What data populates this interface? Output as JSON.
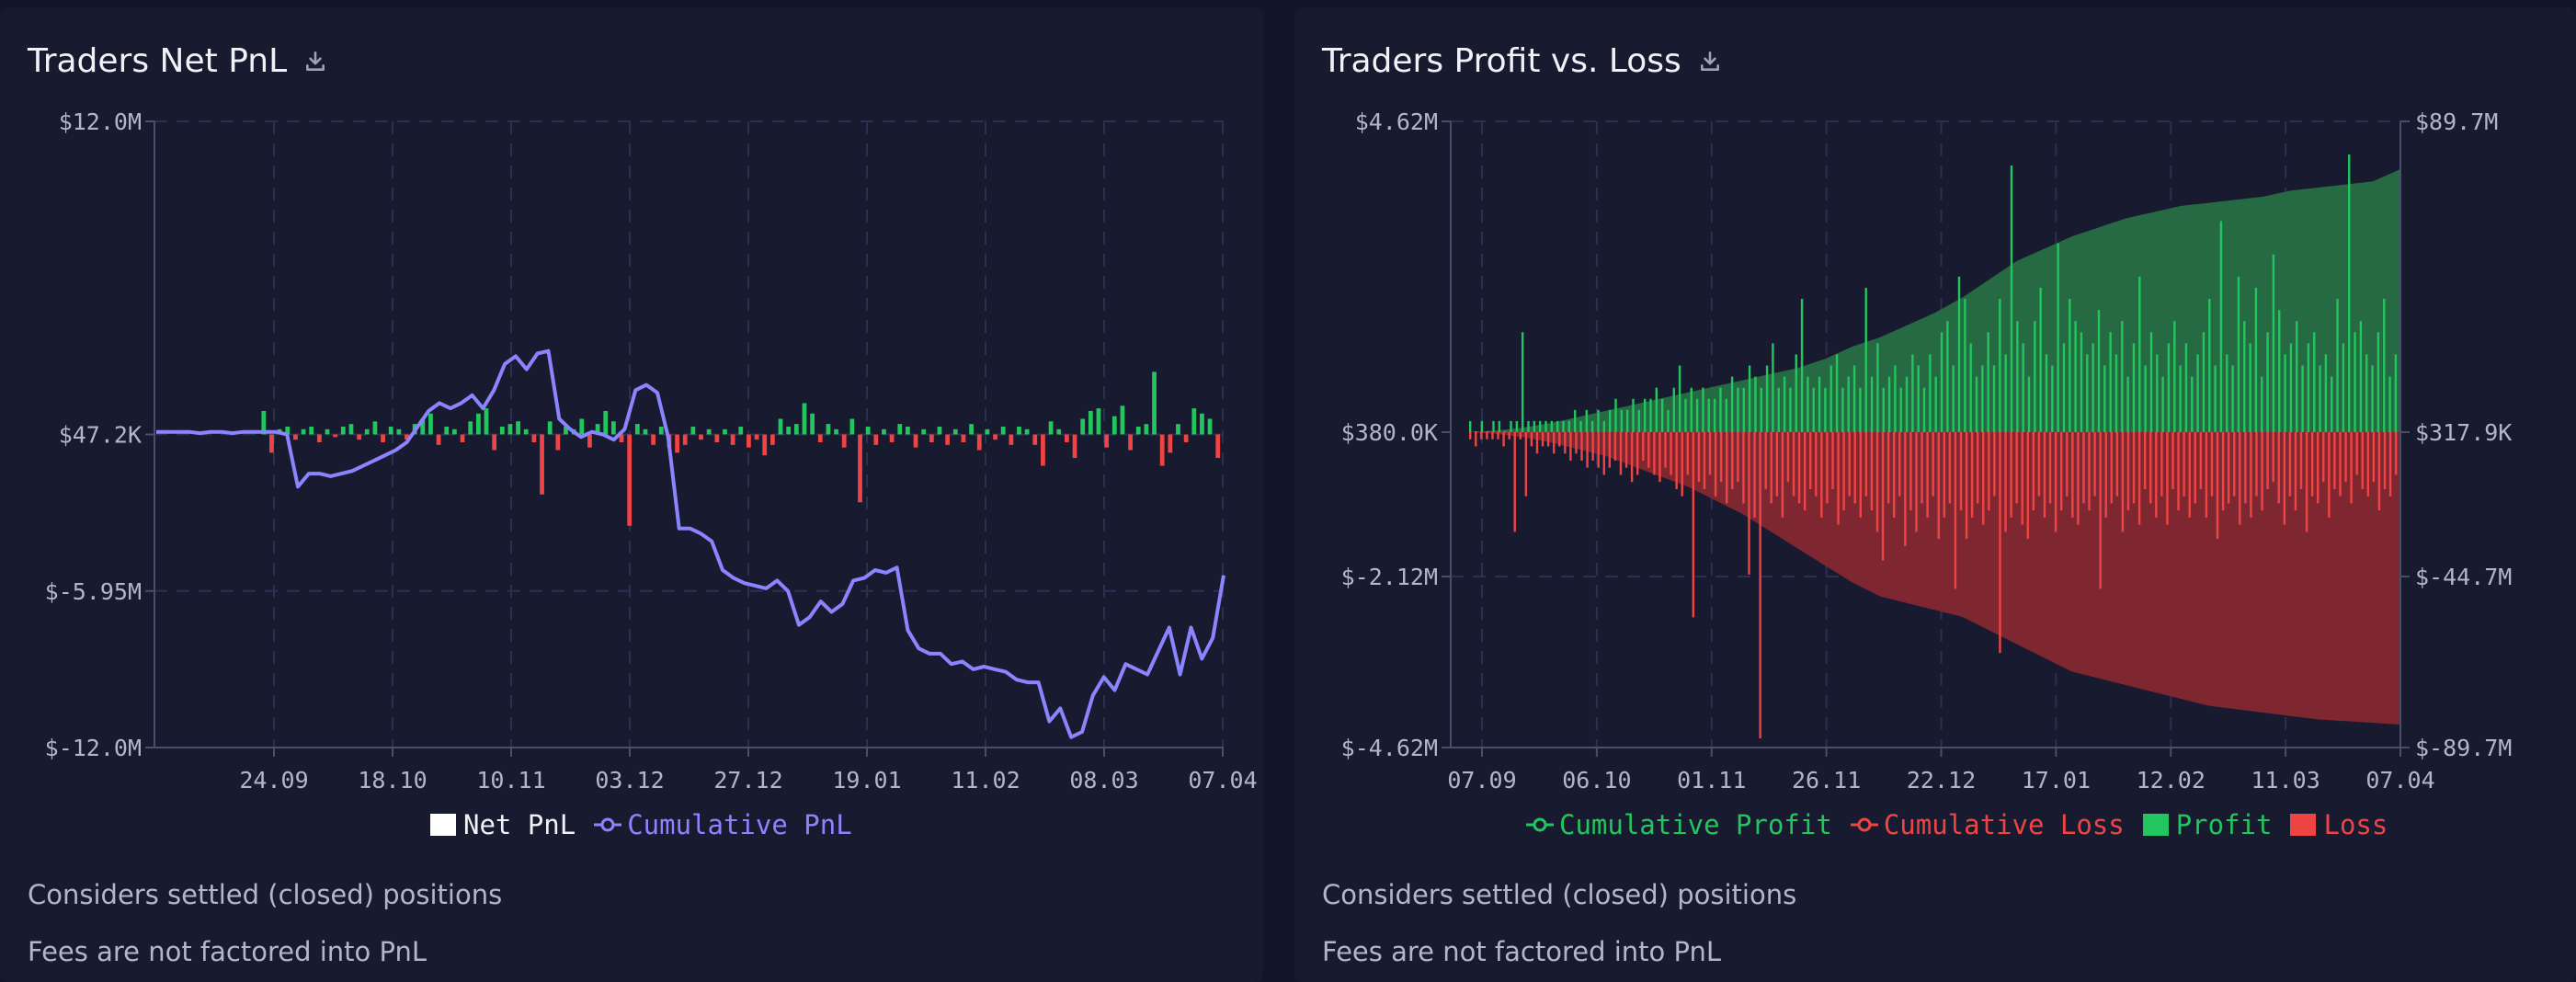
{
  "left_panel": {
    "title": "Traders Net PnL",
    "icon": "download-icon",
    "legend": {
      "net": "Net PnL",
      "cumulative": "Cumulative PnL"
    },
    "notes": [
      "Considers settled (closed) positions",
      "Fees are not factored into PnL"
    ]
  },
  "right_panel": {
    "title": "Traders Profit vs. Loss",
    "icon": "download-icon",
    "legend": {
      "cum_profit": "Cumulative Profit",
      "cum_loss": "Cumulative Loss",
      "profit": "Profit",
      "loss": "Loss"
    },
    "notes": [
      "Considers settled (closed) positions",
      "Fees are not factored into PnL"
    ]
  },
  "colors": {
    "profit": "#22c55e",
    "loss": "#ef4444",
    "cumulative_pnl": "#8b84ff",
    "area_profit": "#266a43",
    "area_loss": "#7e2731",
    "net_swatch": "#ffffff"
  },
  "chart_data": [
    {
      "type": "bar",
      "title": "Traders Net PnL",
      "x_ticks": [
        "24.09",
        "18.10",
        "10.11",
        "03.12",
        "27.12",
        "19.01",
        "11.02",
        "08.03",
        "07.04"
      ],
      "y_ticks": [
        "$12.0M",
        "$47.2K",
        "$-5.95M",
        "$-12.0M"
      ],
      "ylim": [
        -12.0,
        12.0
      ],
      "grid": true,
      "legend_position": "bottom",
      "series": [
        {
          "name": "Net PnL",
          "type": "bar",
          "unit": "millions",
          "values": [
            0,
            0,
            0,
            0,
            0,
            0,
            0,
            0,
            0,
            0,
            0,
            0,
            0,
            0.9,
            -0.7,
            0.2,
            0.3,
            -0.2,
            0.2,
            0.3,
            -0.3,
            0.2,
            -0.1,
            0.3,
            0.4,
            -0.2,
            0.2,
            0.5,
            -0.3,
            0.3,
            0.2,
            -0.2,
            0.4,
            0.6,
            0.8,
            -0.4,
            0.3,
            0.2,
            -0.3,
            0.5,
            0.8,
            1.0,
            -0.6,
            0.3,
            0.4,
            0.5,
            0.2,
            -0.3,
            -2.3,
            0.5,
            -0.6,
            0.3,
            0.2,
            0.6,
            -0.5,
            0.4,
            0.9,
            0.5,
            -0.3,
            -3.5,
            0.4,
            0.2,
            -0.4,
            0.3,
            -0.5,
            -0.7,
            -0.4,
            0.3,
            -0.2,
            0.2,
            -0.3,
            0.2,
            -0.4,
            0.3,
            -0.5,
            -0.2,
            -0.8,
            -0.4,
            0.6,
            0.3,
            0.4,
            1.2,
            0.8,
            -0.3,
            0.4,
            0.2,
            -0.5,
            0.6,
            -2.6,
            0.3,
            -0.4,
            0.2,
            -0.3,
            0.4,
            0.3,
            -0.5,
            0.2,
            -0.3,
            0.3,
            -0.4,
            0.2,
            -0.3,
            0.4,
            -0.6,
            0.2,
            -0.2,
            0.3,
            -0.4,
            0.3,
            0.2,
            -0.4,
            -1.2,
            0.5,
            0.2,
            -0.3,
            -0.9,
            0.6,
            0.9,
            1.0,
            -0.5,
            0.7,
            1.1,
            -0.6,
            0.3,
            0.4,
            2.4,
            -1.2,
            -0.7,
            0.4,
            -0.3,
            1.0,
            0.8,
            0.6,
            -0.9
          ],
          "approximate": true
        },
        {
          "name": "Cumulative PnL",
          "type": "line",
          "unit": "millions",
          "values": [
            0.1,
            0.1,
            0.1,
            0.1,
            0.05,
            0.1,
            0.1,
            0.05,
            0.1,
            0.1,
            0.1,
            0.1,
            0.0,
            -2.0,
            -1.5,
            -1.5,
            -1.6,
            -1.5,
            -1.4,
            -1.2,
            -1.0,
            -0.8,
            -0.6,
            -0.3,
            0.3,
            0.9,
            1.2,
            1.0,
            1.2,
            1.5,
            1.0,
            1.7,
            2.7,
            3.0,
            2.5,
            3.1,
            3.2,
            0.6,
            0.2,
            -0.1,
            0.1,
            0.0,
            -0.2,
            0.2,
            1.7,
            1.9,
            1.6,
            -0.1,
            -3.6,
            -3.6,
            -3.8,
            -4.1,
            -5.2,
            -5.5,
            -5.7,
            -5.8,
            -5.9,
            -5.6,
            -6.0,
            -7.3,
            -7.0,
            -6.4,
            -6.8,
            -6.5,
            -5.6,
            -5.5,
            -5.2,
            -5.3,
            -5.1,
            -7.5,
            -8.2,
            -8.4,
            -8.4,
            -8.8,
            -8.7,
            -9.0,
            -8.9,
            -9.0,
            -9.1,
            -9.4,
            -9.5,
            -9.5,
            -11.0,
            -10.5,
            -11.6,
            -11.4,
            -10.0,
            -9.3,
            -9.8,
            -8.8,
            -9.0,
            -9.2,
            -8.3,
            -7.4,
            -9.2,
            -7.4,
            -8.6,
            -7.8,
            -5.4
          ],
          "approximate": true
        }
      ]
    },
    {
      "type": "bar",
      "title": "Traders Profit vs. Loss",
      "x_ticks": [
        "07.09",
        "06.10",
        "01.11",
        "26.11",
        "22.12",
        "17.01",
        "12.02",
        "11.03",
        "07.04"
      ],
      "y_ticks_left": [
        "$4.62M",
        "$380.0K",
        "$-2.12M",
        "$-4.62M"
      ],
      "y_ticks_right": [
        "$89.7M",
        "$317.9K",
        "$-44.7M",
        "$-89.7M"
      ],
      "ylim_left": [
        -4.62,
        4.62
      ],
      "ylim_right": [
        -89.7,
        89.7
      ],
      "grid": true,
      "legend_position": "bottom",
      "series": [
        {
          "name": "Cumulative Profit",
          "type": "area",
          "axis": "right",
          "unit": "millions",
          "values": [
            0,
            0.5,
            1.5,
            3,
            5,
            7,
            9,
            11,
            13,
            15,
            17,
            19,
            21,
            24,
            28,
            31,
            35,
            39,
            44,
            50,
            56,
            60,
            64,
            67,
            70,
            72,
            74,
            75,
            76,
            77,
            79,
            80,
            81,
            82,
            86
          ],
          "approximate": true
        },
        {
          "name": "Cumulative Loss",
          "type": "area",
          "axis": "right",
          "unit": "millions",
          "values": [
            0,
            -0.5,
            -1.5,
            -3,
            -5,
            -7,
            -10,
            -13,
            -16,
            -20,
            -24,
            -29,
            -34,
            -39,
            -44,
            -48,
            -50,
            -52,
            -54,
            -58,
            -62,
            -66,
            -70,
            -72,
            -74,
            -76,
            -78,
            -80,
            -81,
            -82,
            -83,
            -84,
            -84.5,
            -85,
            -85.5
          ],
          "approximate": true
        },
        {
          "name": "Profit",
          "type": "bar",
          "axis": "left",
          "unit": "millions",
          "values": [
            0.1,
            0.0,
            0.1,
            0.0,
            0.1,
            0.1,
            0.0,
            0.1,
            0.1,
            0.9,
            0.1,
            0.1,
            0.1,
            0.1,
            0.1,
            0.1,
            0.1,
            0.1,
            0.2,
            0.1,
            0.2,
            0.1,
            0.2,
            0.1,
            0.2,
            0.3,
            0.2,
            0.2,
            0.3,
            0.2,
            0.3,
            0.3,
            0.4,
            0.3,
            0.2,
            0.4,
            0.6,
            0.3,
            0.4,
            0.3,
            0.4,
            0.3,
            0.3,
            0.4,
            0.3,
            0.5,
            0.4,
            0.4,
            0.6,
            0.5,
            0.4,
            0.6,
            0.8,
            0.4,
            0.5,
            0.4,
            0.7,
            1.2,
            0.5,
            0.4,
            0.5,
            0.4,
            0.6,
            0.7,
            0.4,
            0.5,
            0.6,
            0.4,
            1.3,
            0.5,
            0.8,
            0.4,
            0.5,
            0.6,
            0.4,
            0.5,
            0.7,
            0.6,
            0.4,
            0.7,
            0.5,
            0.9,
            1.0,
            0.6,
            1.4,
            1.2,
            0.8,
            0.5,
            0.6,
            0.9,
            0.6,
            1.2,
            0.7,
            2.4,
            1.0,
            0.8,
            0.5,
            1.0,
            1.3,
            0.7,
            0.6,
            1.7,
            0.8,
            1.2,
            1.0,
            0.9,
            0.7,
            0.8,
            1.1,
            0.6,
            0.9,
            0.7,
            1.0,
            0.5,
            0.8,
            1.4,
            0.6,
            0.9,
            0.7,
            0.5,
            0.8,
            1.0,
            0.6,
            0.8,
            0.5,
            0.7,
            0.9,
            1.2,
            0.6,
            1.9,
            0.7,
            0.6,
            1.4,
            1.0,
            0.8,
            1.3,
            0.5,
            0.9,
            1.6,
            1.1,
            0.7,
            0.8,
            1.0,
            0.6,
            0.8,
            0.9,
            0.6,
            0.7,
            0.5,
            1.2,
            0.8,
            2.5,
            0.9,
            1.0,
            0.7,
            0.6,
            0.9,
            1.2,
            0.5,
            0.7
          ],
          "approximate": true
        },
        {
          "name": "Loss",
          "type": "bar",
          "axis": "left",
          "unit": "millions",
          "values": [
            -0.1,
            -0.2,
            -0.1,
            -0.1,
            -0.1,
            -0.1,
            -0.2,
            -0.1,
            -1.4,
            -0.1,
            -0.9,
            -0.2,
            -0.3,
            -0.2,
            -0.2,
            -0.3,
            -0.2,
            -0.3,
            -0.4,
            -0.3,
            -0.4,
            -0.5,
            -0.4,
            -0.5,
            -0.6,
            -0.5,
            -0.4,
            -0.6,
            -0.5,
            -0.7,
            -0.6,
            -0.4,
            -0.5,
            -0.6,
            -0.7,
            -0.5,
            -0.6,
            -0.8,
            -0.9,
            -0.6,
            -2.6,
            -0.7,
            -0.8,
            -0.6,
            -0.9,
            -0.7,
            -1.0,
            -0.8,
            -0.7,
            -1.0,
            -2.0,
            -1.2,
            -4.3,
            -0.8,
            -1.0,
            -0.9,
            -1.2,
            -0.7,
            -0.9,
            -1.0,
            -1.1,
            -0.8,
            -0.9,
            -1.2,
            -1.0,
            -0.8,
            -1.3,
            -1.1,
            -0.9,
            -1.0,
            -1.2,
            -0.9,
            -1.1,
            -1.4,
            -1.8,
            -1.0,
            -1.2,
            -0.9,
            -1.6,
            -1.1,
            -1.4,
            -1.0,
            -1.2,
            -0.9,
            -1.5,
            -1.2,
            -1.0,
            -2.2,
            -1.1,
            -1.5,
            -1.2,
            -1.0,
            -1.3,
            -1.1,
            -0.9,
            -3.1,
            -1.4,
            -1.2,
            -1.0,
            -1.3,
            -1.5,
            -1.1,
            -0.9,
            -1.2,
            -1.0,
            -1.4,
            -1.1,
            -0.9,
            -1.2,
            -1.3,
            -1.0,
            -1.1,
            -0.9,
            -2.2,
            -1.2,
            -1.0,
            -0.9,
            -1.4,
            -1.1,
            -1.0,
            -1.3,
            -0.8,
            -1.0,
            -1.2,
            -0.9,
            -1.3,
            -0.8,
            -1.1,
            -0.9,
            -1.2,
            -1.0,
            -0.8,
            -1.2,
            -0.9,
            -1.5,
            -1.1,
            -1.0,
            -0.9,
            -1.3,
            -1.0,
            -1.2,
            -0.9,
            -1.1,
            -0.8,
            -0.7,
            -1.0,
            -1.3,
            -0.9,
            -1.1,
            -0.8,
            -1.4,
            -0.9,
            -1.0,
            -0.7,
            -1.2,
            -0.8,
            -0.9,
            -0.7,
            -1.0,
            -0.6,
            -0.8,
            -0.9,
            -0.7,
            -1.1,
            -0.8,
            -0.9,
            -0.6
          ],
          "approximate": true
        }
      ]
    }
  ]
}
